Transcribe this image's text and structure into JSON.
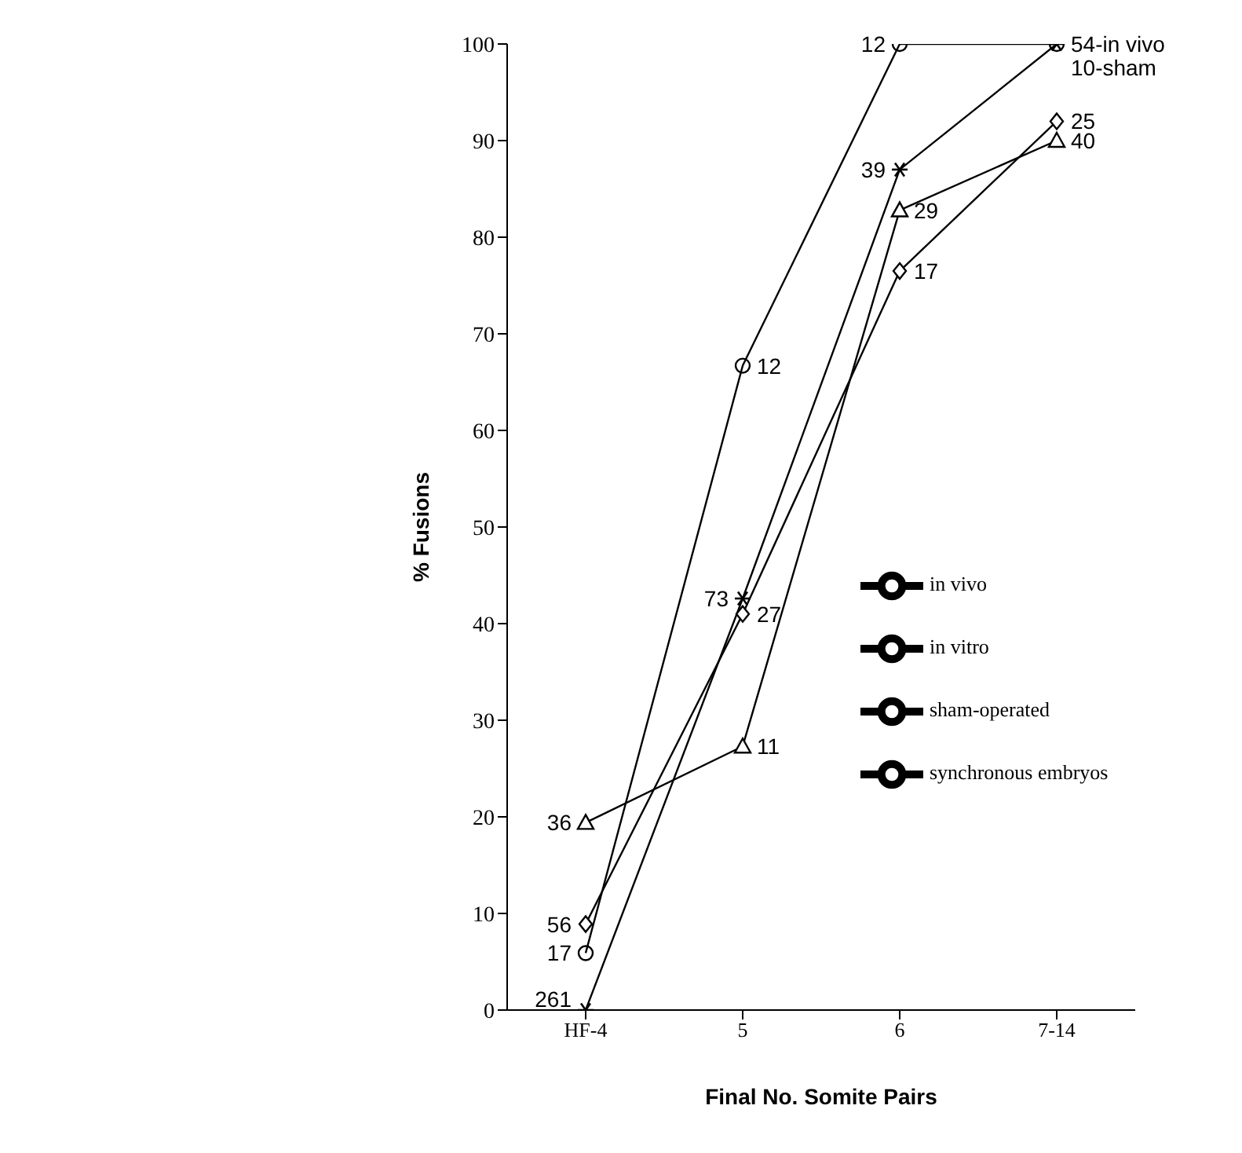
{
  "chart_data": {
    "type": "line",
    "xlabel": "Final No. Somite Pairs",
    "ylabel": "% Fusions",
    "categories": [
      "HF-4",
      "5",
      "6",
      "7-14"
    ],
    "ylim": [
      0,
      100
    ],
    "yticks": [
      0,
      10,
      20,
      30,
      40,
      50,
      60,
      70,
      80,
      90,
      100
    ],
    "grid": false,
    "legend": "right",
    "line_style": "solid",
    "series": [
      {
        "name": "in vivo",
        "color": "#000000",
        "marker": "cross",
        "values": [
          0,
          42.6,
          87,
          100
        ]
      },
      {
        "name": "in vitro",
        "color": "#000000",
        "marker": "diamond",
        "values": [
          8.9,
          41,
          76.5,
          92
        ]
      },
      {
        "name": "sham-operated",
        "color": "#000000",
        "marker": "circle",
        "values": [
          5.9,
          66.7,
          100,
          100
        ]
      },
      {
        "name": "synchronous embryos",
        "color": "#000000",
        "marker": "triangle",
        "values": [
          19.4,
          27.3,
          82.8,
          90
        ]
      }
    ],
    "annotations": [
      {
        "text": "261",
        "x": "HF-4",
        "y": 0
      },
      {
        "text": "17",
        "x": "HF-4",
        "y": 5.9
      },
      {
        "text": "56",
        "x": "HF-4",
        "y": 8.9
      },
      {
        "text": "36",
        "x": "HF-4",
        "y": 19.4
      },
      {
        "text": "73",
        "x": "5",
        "y": 42.6
      },
      {
        "text": "27",
        "x": "5",
        "y": 41
      },
      {
        "text": "12",
        "x": "5",
        "y": 66.7
      },
      {
        "text": "11",
        "x": "5",
        "y": 27.3
      },
      {
        "text": "12",
        "x": "6",
        "y": 100
      },
      {
        "text": "39",
        "x": "6",
        "y": 87
      },
      {
        "text": "29",
        "x": "6",
        "y": 82.8
      },
      {
        "text": "17",
        "x": "6",
        "y": 76.5
      },
      {
        "text": "54-in vivo",
        "x": "7-14",
        "y": 100
      },
      {
        "text": "10-sham",
        "x": "7-14",
        "y": 100
      },
      {
        "text": "25",
        "x": "7-14",
        "y": 92
      },
      {
        "text": "40",
        "x": "7-14",
        "y": 90
      }
    ]
  }
}
